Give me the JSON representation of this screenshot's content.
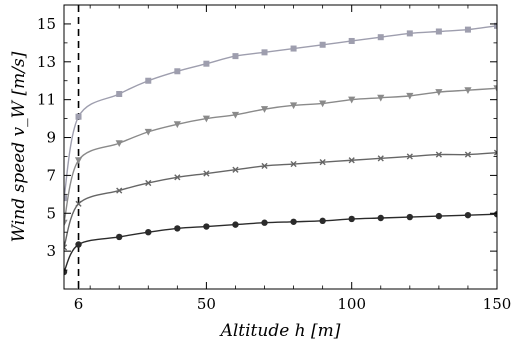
{
  "chart_data": {
    "type": "line",
    "title": "",
    "xlabel": "Altitude h [m]",
    "ylabel": "Wind speed v_W [m/s]",
    "xlim": [
      1,
      150
    ],
    "ylim": [
      1,
      16
    ],
    "xticks": [
      6,
      50,
      100,
      150
    ],
    "yticks": [
      3,
      5,
      7,
      9,
      11,
      13,
      15
    ],
    "grid": false,
    "legend": "none",
    "reference_line": {
      "x": 6,
      "style": "dashed",
      "color": "#000000"
    },
    "marker_x": [
      1,
      6,
      20,
      30,
      40,
      50,
      60,
      70,
      80,
      90,
      100,
      110,
      120,
      130,
      140,
      150
    ],
    "series": [
      {
        "marker": "square",
        "color": "#9e9eae",
        "values": [
          5.8,
          10.1,
          11.3,
          12.0,
          12.5,
          12.9,
          13.3,
          13.5,
          13.7,
          13.9,
          14.1,
          14.3,
          14.5,
          14.6,
          14.7,
          14.9
        ]
      },
      {
        "marker": "triangle",
        "color": "#8a8a8a",
        "values": [
          4.5,
          7.8,
          8.7,
          9.3,
          9.7,
          10.0,
          10.2,
          10.5,
          10.7,
          10.8,
          11.0,
          11.1,
          11.2,
          11.4,
          11.5,
          11.6
        ]
      },
      {
        "marker": "x",
        "color": "#666666",
        "values": [
          3.2,
          5.5,
          6.2,
          6.6,
          6.9,
          7.1,
          7.3,
          7.5,
          7.6,
          7.7,
          7.8,
          7.9,
          8.0,
          8.1,
          8.1,
          8.2
        ]
      },
      {
        "marker": "circle",
        "color": "#2b2b2b",
        "values": [
          1.9,
          3.35,
          3.75,
          4.0,
          4.2,
          4.3,
          4.4,
          4.5,
          4.55,
          4.6,
          4.7,
          4.75,
          4.8,
          4.85,
          4.9,
          4.95
        ]
      }
    ]
  }
}
